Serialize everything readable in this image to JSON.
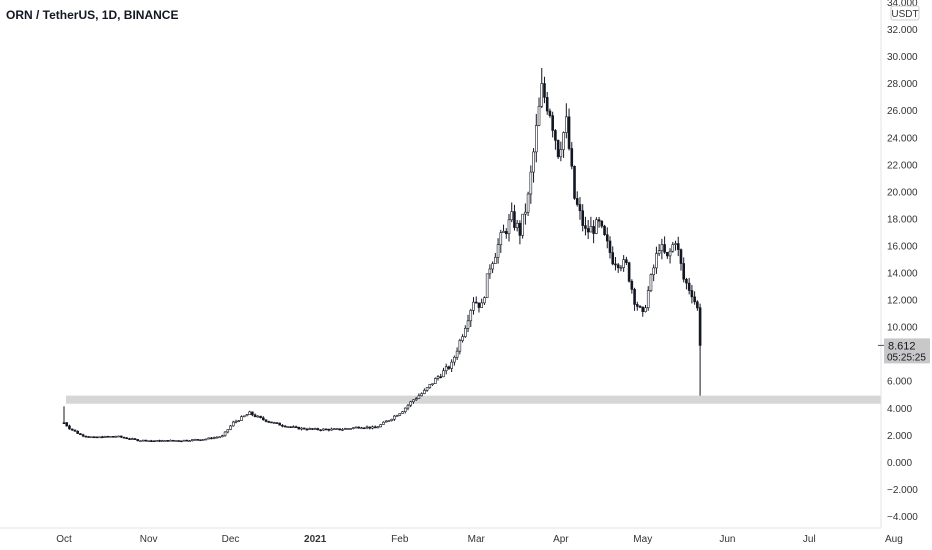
{
  "symbol_title": "ORN / TetherUS, 1D, BINANCE",
  "currency_label": "USDT",
  "last_price": "8.612",
  "countdown": "05:25:25",
  "colors": {
    "candle": "#131722",
    "zone": "#d6d6d6",
    "axis_text": "#333333",
    "price_box": "#c8c8c8"
  },
  "chart_data": {
    "type": "candlestick",
    "title": "ORN / TetherUS, 1D, BINANCE",
    "y_unit": "USDT",
    "ylim": [
      -4,
      34
    ],
    "y_ticks": [
      "34.000",
      "32.000",
      "30.000",
      "28.000",
      "26.000",
      "24.000",
      "22.000",
      "20.000",
      "18.000",
      "16.000",
      "14.000",
      "12.000",
      "10.000",
      "8.000",
      "6.000",
      "4.000",
      "2.000",
      "0.000",
      "−2.000",
      "−4.000"
    ],
    "x_ticks": [
      "Oct",
      "Nov",
      "Dec",
      "2021",
      "Feb",
      "Mar",
      "Apr",
      "May",
      "Jun",
      "Jul",
      "Aug"
    ],
    "highlight_zone": {
      "from": 4.3,
      "to": 4.9
    },
    "last_value": 8.612,
    "grid": false,
    "price_path": [
      [
        "2020-10-01",
        2.9
      ],
      [
        "2020-10-03",
        2.5
      ],
      [
        "2020-10-07",
        2.0
      ],
      [
        "2020-10-12",
        1.8
      ],
      [
        "2020-10-20",
        1.9
      ],
      [
        "2020-10-28",
        1.6
      ],
      [
        "2020-11-05",
        1.55
      ],
      [
        "2020-11-15",
        1.6
      ],
      [
        "2020-11-22",
        1.7
      ],
      [
        "2020-11-28",
        1.9
      ],
      [
        "2020-12-02",
        2.9
      ],
      [
        "2020-12-08",
        3.6
      ],
      [
        "2020-12-12",
        3.2
      ],
      [
        "2020-12-18",
        2.8
      ],
      [
        "2020-12-25",
        2.5
      ],
      [
        "2021-01-01",
        2.4
      ],
      [
        "2021-01-10",
        2.4
      ],
      [
        "2021-01-18",
        2.6
      ],
      [
        "2021-01-23",
        2.5
      ],
      [
        "2021-01-28",
        3.1
      ],
      [
        "2021-02-02",
        3.8
      ],
      [
        "2021-02-06",
        4.6
      ],
      [
        "2021-02-10",
        5.2
      ],
      [
        "2021-02-15",
        6.3
      ],
      [
        "2021-02-20",
        7.2
      ],
      [
        "2021-02-24",
        9.5
      ],
      [
        "2021-02-28",
        12.0
      ],
      [
        "2021-03-03",
        11.5
      ],
      [
        "2021-03-06",
        14.5
      ],
      [
        "2021-03-10",
        16.5
      ],
      [
        "2021-03-14",
        18.0
      ],
      [
        "2021-03-17",
        17.0
      ],
      [
        "2021-03-20",
        19.5
      ],
      [
        "2021-03-23",
        24.5
      ],
      [
        "2021-03-25",
        27.5
      ],
      [
        "2021-03-28",
        26.0
      ],
      [
        "2021-03-31",
        23.0
      ],
      [
        "2021-04-03",
        25.0
      ],
      [
        "2021-04-06",
        19.5
      ],
      [
        "2021-04-10",
        17.0
      ],
      [
        "2021-04-15",
        17.5
      ],
      [
        "2021-04-20",
        15.0
      ],
      [
        "2021-04-25",
        14.5
      ],
      [
        "2021-04-28",
        12.0
      ],
      [
        "2021-05-01",
        10.8
      ],
      [
        "2021-05-04",
        13.5
      ],
      [
        "2021-05-07",
        16.0
      ],
      [
        "2021-05-10",
        15.0
      ],
      [
        "2021-05-13",
        16.5
      ],
      [
        "2021-05-16",
        13.5
      ],
      [
        "2021-05-19",
        12.5
      ],
      [
        "2021-05-21",
        11.3
      ],
      [
        "2021-05-22",
        8.6
      ]
    ]
  }
}
